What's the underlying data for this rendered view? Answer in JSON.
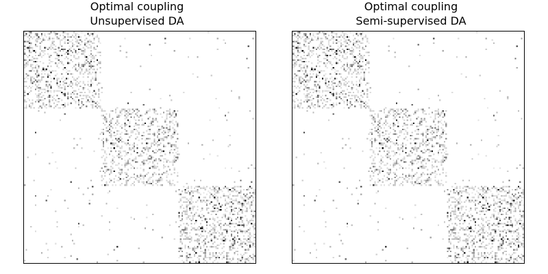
{
  "chart_data": [
    {
      "type": "heatmap",
      "title_line1": "Optimal coupling",
      "title_line2": "Unsupervised DA",
      "xlabel": "",
      "ylabel": "",
      "grid": false,
      "axes_ticks": false,
      "colormap": "gray_r",
      "block_structure": {
        "n_rows": 150,
        "n_cols": 150,
        "blocks": [
          {
            "rows": [
              0,
              50
            ],
            "cols": [
              0,
              50
            ]
          },
          {
            "rows": [
              50,
              100
            ],
            "cols": [
              50,
              100
            ]
          },
          {
            "rows": [
              100,
              150
            ],
            "cols": [
              100,
              150
            ]
          }
        ]
      },
      "seed": 7
    },
    {
      "type": "heatmap",
      "title_line1": "Optimal coupling",
      "title_line2": "Semi-supervised DA",
      "xlabel": "",
      "ylabel": "",
      "grid": false,
      "axes_ticks": false,
      "colormap": "gray_r",
      "block_structure": {
        "n_rows": 150,
        "n_cols": 150,
        "blocks": [
          {
            "rows": [
              0,
              50
            ],
            "cols": [
              0,
              50
            ]
          },
          {
            "rows": [
              50,
              100
            ],
            "cols": [
              50,
              100
            ]
          },
          {
            "rows": [
              100,
              150
            ],
            "cols": [
              100,
              150
            ]
          }
        ]
      },
      "seed": 7
    }
  ]
}
